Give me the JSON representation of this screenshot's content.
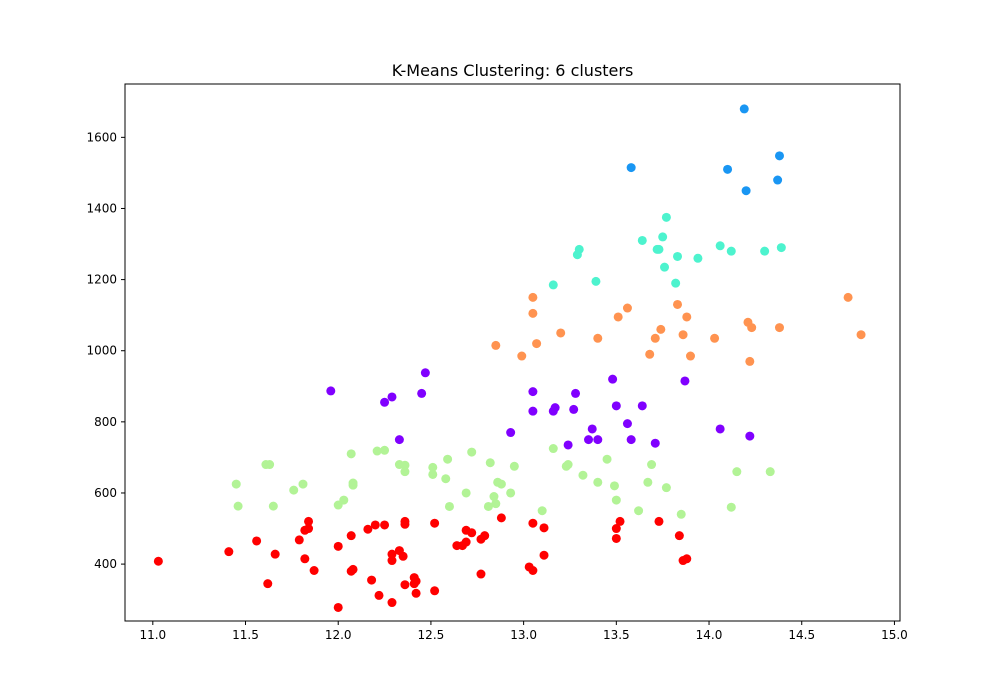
{
  "chart_data": {
    "type": "scatter",
    "title": "K-Means Clustering: 6 clusters",
    "xlabel": "",
    "ylabel": "",
    "xlim": [
      10.85,
      15.03
    ],
    "ylim": [
      240,
      1750
    ],
    "xticks": [
      11.0,
      11.5,
      12.0,
      12.5,
      13.0,
      13.5,
      14.0,
      14.5,
      15.0
    ],
    "xtick_labels": [
      "11.0",
      "11.5",
      "12.0",
      "12.5",
      "13.0",
      "13.5",
      "14.0",
      "14.5",
      "15.0"
    ],
    "yticks": [
      400,
      600,
      800,
      1000,
      1200,
      1400,
      1600
    ],
    "ytick_labels": [
      "400",
      "600",
      "800",
      "1000",
      "1200",
      "1400",
      "1600"
    ],
    "grid": false,
    "legend": "none",
    "series": [
      {
        "color": "#ff0000",
        "points": [
          [
            11.03,
            408
          ],
          [
            11.41,
            435
          ],
          [
            11.56,
            465
          ],
          [
            11.62,
            345
          ],
          [
            11.66,
            428
          ],
          [
            11.79,
            468
          ],
          [
            11.82,
            415
          ],
          [
            11.82,
            495
          ],
          [
            11.84,
            520
          ],
          [
            11.84,
            500
          ],
          [
            11.87,
            382
          ],
          [
            12.0,
            450
          ],
          [
            12.0,
            278
          ],
          [
            12.07,
            480
          ],
          [
            12.07,
            380
          ],
          [
            12.08,
            385
          ],
          [
            12.16,
            498
          ],
          [
            12.18,
            355
          ],
          [
            12.2,
            510
          ],
          [
            12.22,
            312
          ],
          [
            12.25,
            510
          ],
          [
            12.29,
            410
          ],
          [
            12.29,
            428
          ],
          [
            12.29,
            292
          ],
          [
            12.33,
            438
          ],
          [
            12.35,
            422
          ],
          [
            12.36,
            520
          ],
          [
            12.36,
            512
          ],
          [
            12.36,
            342
          ],
          [
            12.41,
            345
          ],
          [
            12.41,
            362
          ],
          [
            12.42,
            318
          ],
          [
            12.42,
            352
          ],
          [
            12.52,
            515
          ],
          [
            12.52,
            325
          ],
          [
            12.64,
            452
          ],
          [
            12.67,
            452
          ],
          [
            12.69,
            495
          ],
          [
            12.69,
            462
          ],
          [
            12.72,
            488
          ],
          [
            12.77,
            470
          ],
          [
            12.77,
            372
          ],
          [
            12.79,
            480
          ],
          [
            12.88,
            530
          ],
          [
            13.03,
            392
          ],
          [
            13.05,
            382
          ],
          [
            13.05,
            515
          ],
          [
            13.11,
            502
          ],
          [
            13.11,
            425
          ],
          [
            13.5,
            472
          ],
          [
            13.5,
            500
          ],
          [
            13.52,
            520
          ],
          [
            13.73,
            520
          ],
          [
            13.84,
            480
          ],
          [
            13.86,
            410
          ],
          [
            13.88,
            415
          ]
        ]
      },
      {
        "color": "#b2f396",
        "points": [
          [
            11.45,
            625
          ],
          [
            11.46,
            563
          ],
          [
            11.61,
            680
          ],
          [
            11.63,
            680
          ],
          [
            11.65,
            563
          ],
          [
            11.76,
            608
          ],
          [
            11.81,
            625
          ],
          [
            12.0,
            566
          ],
          [
            12.03,
            580
          ],
          [
            12.07,
            710
          ],
          [
            12.08,
            628
          ],
          [
            12.08,
            622
          ],
          [
            12.21,
            718
          ],
          [
            12.25,
            720
          ],
          [
            12.33,
            680
          ],
          [
            12.36,
            678
          ],
          [
            12.36,
            660
          ],
          [
            12.51,
            672
          ],
          [
            12.51,
            652
          ],
          [
            12.58,
            640
          ],
          [
            12.59,
            695
          ],
          [
            12.6,
            562
          ],
          [
            12.69,
            600
          ],
          [
            12.72,
            715
          ],
          [
            12.81,
            562
          ],
          [
            12.82,
            685
          ],
          [
            12.84,
            590
          ],
          [
            12.85,
            570
          ],
          [
            12.86,
            630
          ],
          [
            12.88,
            625
          ],
          [
            12.93,
            600
          ],
          [
            12.95,
            675
          ],
          [
            13.1,
            550
          ],
          [
            13.16,
            725
          ],
          [
            13.23,
            675
          ],
          [
            13.24,
            680
          ],
          [
            13.32,
            650
          ],
          [
            13.4,
            630
          ],
          [
            13.45,
            695
          ],
          [
            13.49,
            620
          ],
          [
            13.5,
            580
          ],
          [
            13.62,
            550
          ],
          [
            13.67,
            630
          ],
          [
            13.69,
            680
          ],
          [
            13.77,
            615
          ],
          [
            13.85,
            540
          ],
          [
            14.12,
            560
          ],
          [
            14.15,
            660
          ],
          [
            14.33,
            660
          ]
        ]
      },
      {
        "color": "#8000ff",
        "points": [
          [
            11.96,
            887
          ],
          [
            12.25,
            855
          ],
          [
            12.29,
            870
          ],
          [
            12.33,
            750
          ],
          [
            12.45,
            880
          ],
          [
            12.47,
            938
          ],
          [
            12.93,
            770
          ],
          [
            13.05,
            885
          ],
          [
            13.05,
            830
          ],
          [
            13.16,
            830
          ],
          [
            13.17,
            840
          ],
          [
            13.24,
            735
          ],
          [
            13.27,
            835
          ],
          [
            13.28,
            880
          ],
          [
            13.35,
            750
          ],
          [
            13.37,
            780
          ],
          [
            13.4,
            750
          ],
          [
            13.48,
            920
          ],
          [
            13.5,
            845
          ],
          [
            13.56,
            795
          ],
          [
            13.58,
            750
          ],
          [
            13.64,
            845
          ],
          [
            13.71,
            740
          ],
          [
            13.87,
            915
          ],
          [
            14.06,
            780
          ],
          [
            14.22,
            760
          ]
        ]
      },
      {
        "color": "#ff9350",
        "points": [
          [
            12.85,
            1015
          ],
          [
            12.99,
            985
          ],
          [
            13.05,
            1150
          ],
          [
            13.05,
            1105
          ],
          [
            13.07,
            1020
          ],
          [
            13.2,
            1050
          ],
          [
            13.4,
            1035
          ],
          [
            13.51,
            1095
          ],
          [
            13.56,
            1120
          ],
          [
            13.68,
            990
          ],
          [
            13.71,
            1035
          ],
          [
            13.74,
            1060
          ],
          [
            13.83,
            1130
          ],
          [
            13.86,
            1045
          ],
          [
            13.88,
            1095
          ],
          [
            13.9,
            985
          ],
          [
            14.03,
            1035
          ],
          [
            14.21,
            1080
          ],
          [
            14.22,
            970
          ],
          [
            14.23,
            1065
          ],
          [
            14.38,
            1065
          ],
          [
            14.75,
            1150
          ],
          [
            14.82,
            1045
          ]
        ]
      },
      {
        "color": "#4df3ce",
        "points": [
          [
            13.16,
            1185
          ],
          [
            13.29,
            1270
          ],
          [
            13.3,
            1285
          ],
          [
            13.39,
            1195
          ],
          [
            13.64,
            1310
          ],
          [
            13.72,
            1285
          ],
          [
            13.73,
            1285
          ],
          [
            13.75,
            1320
          ],
          [
            13.76,
            1235
          ],
          [
            13.77,
            1375
          ],
          [
            13.82,
            1190
          ],
          [
            13.83,
            1265
          ],
          [
            13.94,
            1260
          ],
          [
            14.06,
            1295
          ],
          [
            14.12,
            1280
          ],
          [
            14.3,
            1280
          ],
          [
            14.39,
            1290
          ]
        ]
      },
      {
        "color": "#1996f3",
        "points": [
          [
            13.58,
            1515
          ],
          [
            14.1,
            1510
          ],
          [
            14.19,
            1680
          ],
          [
            14.2,
            1450
          ],
          [
            14.37,
            1480
          ],
          [
            14.38,
            1548
          ]
        ]
      }
    ]
  }
}
